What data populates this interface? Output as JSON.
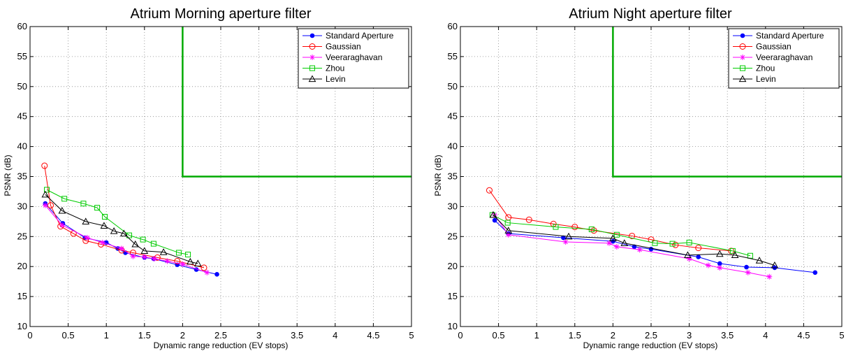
{
  "chart_data": [
    {
      "type": "line",
      "title": "Atrium Morning aperture filter",
      "xlabel": "Dynamic range reduction (EV stops)",
      "ylabel": "PSNR (dB)",
      "xlim": [
        0,
        5
      ],
      "ylim": [
        10,
        60
      ],
      "xticks": [
        "0",
        "0.5",
        "1",
        "1.5",
        "2",
        "2.5",
        "3",
        "3.5",
        "4",
        "4.5",
        "5"
      ],
      "yticks": [
        "10",
        "15",
        "20",
        "25",
        "30",
        "35",
        "40",
        "45",
        "50",
        "55",
        "60"
      ],
      "grid": true,
      "legend_position": "top-right",
      "series": [
        {
          "name": "Standard Aperture",
          "color": "#0000ff",
          "marker": "dot",
          "x": [
            0.2,
            0.43,
            0.72,
            1.0,
            1.15,
            1.25,
            1.5,
            1.62,
            1.93,
            2.18,
            2.45
          ],
          "y": [
            30.5,
            27.2,
            24.8,
            24.0,
            23.0,
            22.3,
            21.5,
            21.3,
            20.3,
            19.5,
            18.7
          ]
        },
        {
          "name": "Gaussian",
          "color": "#ff0000",
          "marker": "circle",
          "x": [
            0.19,
            0.27,
            0.4,
            0.57,
            0.73,
            0.93,
            1.2,
            1.35,
            1.67,
            1.93,
            2.28
          ],
          "y": [
            36.8,
            30.2,
            26.7,
            25.5,
            24.3,
            23.7,
            22.7,
            22.3,
            21.5,
            20.9,
            19.8
          ]
        },
        {
          "name": "Veeraraghavan",
          "color": "#ff00ff",
          "marker": "star",
          "x": [
            0.2,
            0.42,
            0.75,
            0.95,
            1.2,
            1.35,
            1.5,
            1.63,
            1.8,
            2.0,
            2.32
          ],
          "y": [
            30.2,
            26.9,
            24.8,
            24.0,
            23.0,
            21.7,
            21.6,
            21.3,
            20.9,
            20.4,
            19.0
          ]
        },
        {
          "name": "Zhou",
          "color": "#00cc00",
          "marker": "square",
          "x": [
            0.22,
            0.45,
            0.7,
            0.88,
            0.98,
            1.3,
            1.48,
            1.62,
            1.95,
            2.07
          ],
          "y": [
            32.8,
            31.3,
            30.5,
            29.8,
            28.3,
            25.2,
            24.5,
            23.8,
            22.3,
            22.0
          ]
        },
        {
          "name": "Levin",
          "color": "#000000",
          "marker": "triangle",
          "x": [
            0.2,
            0.42,
            0.73,
            0.97,
            1.1,
            1.23,
            1.38,
            1.5,
            1.75,
            2.1,
            2.2
          ],
          "y": [
            32.0,
            29.3,
            27.5,
            26.8,
            25.9,
            25.5,
            23.7,
            22.6,
            22.4,
            20.8,
            20.5
          ]
        }
      ],
      "threshold": {
        "color": "#00aa00",
        "x": 2.0,
        "y": 35,
        "label": ""
      }
    },
    {
      "type": "line",
      "title": "Atrium Night aperture filter",
      "xlabel": "Dynamic range reduction (EV stops)",
      "ylabel": "PSNR (dB)",
      "xlim": [
        0,
        5
      ],
      "ylim": [
        10,
        60
      ],
      "xticks": [
        "0",
        "0.5",
        "1",
        "1.5",
        "2",
        "2.5",
        "3",
        "3.5",
        "4",
        "4.5",
        "5"
      ],
      "yticks": [
        "10",
        "15",
        "20",
        "25",
        "30",
        "35",
        "40",
        "45",
        "50",
        "55",
        "60"
      ],
      "grid": true,
      "legend_position": "top-right",
      "series": [
        {
          "name": "Standard Aperture",
          "color": "#0000ff",
          "marker": "dot",
          "x": [
            0.45,
            0.63,
            1.35,
            2.0,
            2.28,
            2.5,
            3.12,
            3.4,
            3.75,
            4.12,
            4.65
          ],
          "y": [
            27.7,
            25.5,
            24.8,
            24.2,
            23.3,
            22.9,
            21.6,
            20.5,
            19.9,
            19.8,
            19.0
          ]
        },
        {
          "name": "Gaussian",
          "color": "#ff0000",
          "marker": "circle",
          "x": [
            0.38,
            0.63,
            0.9,
            1.22,
            1.5,
            1.75,
            2.25,
            2.5,
            2.82,
            3.12,
            3.55
          ],
          "y": [
            32.7,
            28.2,
            27.8,
            27.1,
            26.6,
            26.0,
            25.1,
            24.5,
            23.6,
            23.1,
            22.6
          ]
        },
        {
          "name": "Veeraraghavan",
          "color": "#ff00ff",
          "marker": "star",
          "x": [
            0.45,
            0.63,
            1.38,
            1.95,
            2.05,
            2.35,
            3.0,
            3.25,
            3.4,
            3.77,
            4.05
          ],
          "y": [
            28.6,
            25.3,
            24.1,
            23.9,
            23.3,
            22.8,
            21.3,
            20.2,
            19.8,
            19.0,
            18.3
          ]
        },
        {
          "name": "Zhou",
          "color": "#00cc00",
          "marker": "square",
          "x": [
            0.42,
            0.62,
            1.25,
            1.72,
            2.05,
            2.55,
            2.78,
            3.0,
            3.57,
            3.8
          ],
          "y": [
            28.6,
            27.3,
            26.6,
            26.2,
            25.3,
            23.9,
            23.8,
            24.0,
            22.6,
            21.8
          ]
        },
        {
          "name": "Levin",
          "color": "#000000",
          "marker": "triangle",
          "x": [
            0.43,
            0.63,
            1.42,
            2.0,
            2.15,
            2.98,
            3.4,
            3.6,
            3.92,
            4.12
          ],
          "y": [
            28.6,
            26.0,
            25.0,
            24.7,
            23.9,
            21.9,
            22.1,
            21.9,
            21.0,
            20.2
          ]
        }
      ],
      "threshold": {
        "color": "#00aa00",
        "x": 2.0,
        "y": 35,
        "label": ""
      }
    }
  ]
}
